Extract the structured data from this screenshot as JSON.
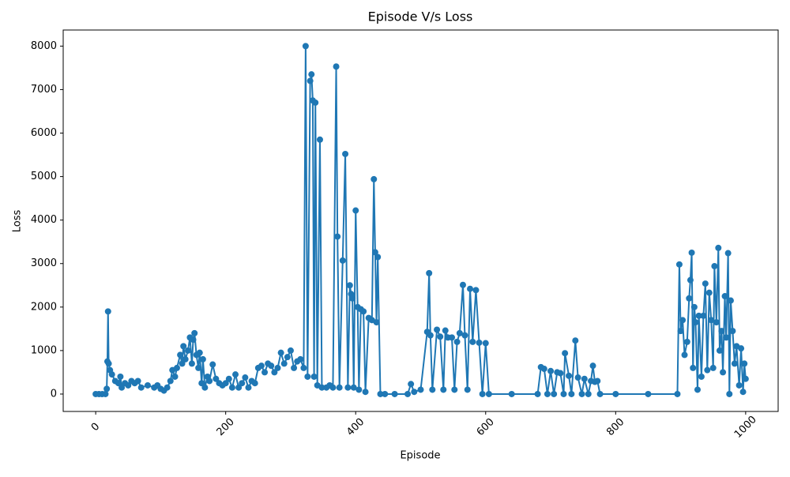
{
  "chart_data": {
    "type": "line",
    "title": "Episode V/s Loss",
    "x_label": "Episode",
    "y_label": "Loss",
    "series": [
      {
        "color": "#1f77b4",
        "x": [
          0,
          5,
          10,
          15,
          17,
          18,
          19,
          20,
          22,
          25,
          30,
          35,
          38,
          40,
          45,
          50,
          55,
          60,
          65,
          70,
          80,
          90,
          95,
          100,
          105,
          110,
          115,
          118,
          122,
          125,
          130,
          133,
          135,
          138,
          142,
          145,
          148,
          150,
          152,
          155,
          158,
          160,
          163,
          165,
          168,
          172,
          175,
          180,
          185,
          190,
          195,
          200,
          205,
          210,
          215,
          220,
          225,
          230,
          235,
          240,
          245,
          250,
          255,
          260,
          265,
          270,
          275,
          280,
          285,
          290,
          295,
          300,
          305,
          310,
          315,
          320,
          323,
          326,
          330,
          332,
          334,
          336,
          338,
          341,
          345,
          348,
          355,
          360,
          365,
          370,
          372,
          375,
          380,
          384,
          388,
          391,
          393,
          395,
          397,
          400,
          403,
          405,
          408,
          412,
          415,
          420,
          425,
          428,
          430,
          432,
          434,
          438,
          445,
          460,
          480,
          485,
          490,
          500,
          510,
          513,
          515,
          518,
          525,
          530,
          535,
          538,
          542,
          548,
          552,
          556,
          560,
          565,
          568,
          572,
          576,
          580,
          585,
          590,
          595,
          600,
          605,
          640,
          680,
          685,
          690,
          695,
          700,
          705,
          710,
          715,
          720,
          722,
          728,
          732,
          738,
          742,
          748,
          752,
          758,
          762,
          765,
          768,
          772,
          776,
          800,
          850,
          895,
          898,
          900,
          903,
          906,
          910,
          913,
          915,
          917,
          919,
          921,
          923,
          926,
          928,
          932,
          935,
          938,
          941,
          944,
          947,
          950,
          952,
          955,
          958,
          960,
          963,
          965,
          968,
          970,
          973,
          975,
          977,
          980,
          983,
          986,
          990,
          993,
          996,
          998,
          1000
        ],
        "values": [
          0,
          0,
          0,
          0,
          120,
          750,
          1900,
          700,
          550,
          450,
          300,
          250,
          400,
          150,
          250,
          200,
          300,
          250,
          300,
          150,
          200,
          150,
          200,
          120,
          80,
          150,
          300,
          550,
          400,
          600,
          900,
          700,
          1100,
          800,
          1000,
          1300,
          700,
          1250,
          1400,
          900,
          600,
          950,
          250,
          800,
          150,
          400,
          300,
          680,
          350,
          250,
          200,
          250,
          350,
          150,
          450,
          150,
          250,
          380,
          150,
          300,
          250,
          600,
          650,
          500,
          700,
          650,
          500,
          600,
          950,
          700,
          850,
          1000,
          600,
          750,
          800,
          600,
          8000,
          400,
          7200,
          7350,
          6750,
          400,
          6700,
          200,
          5850,
          150,
          150,
          200,
          150,
          7530,
          3620,
          150,
          3070,
          5520,
          150,
          2500,
          2300,
          2200,
          150,
          4220,
          2000,
          100,
          1950,
          1900,
          50,
          1750,
          1700,
          4940,
          3260,
          1650,
          3150,
          0,
          0,
          0,
          0,
          230,
          50,
          100,
          1430,
          2780,
          1350,
          100,
          1480,
          1320,
          100,
          1460,
          1300,
          1300,
          100,
          1200,
          1400,
          2510,
          1350,
          100,
          2420,
          1200,
          2390,
          1180,
          0,
          1170,
          0,
          0,
          0,
          620,
          580,
          0,
          530,
          0,
          500,
          480,
          0,
          940,
          420,
          0,
          1230,
          380,
          0,
          350,
          0,
          300,
          650,
          280,
          300,
          0,
          0,
          0,
          0,
          2980,
          1450,
          1700,
          900,
          1200,
          2200,
          2620,
          3250,
          600,
          2000,
          1650,
          100,
          1800,
          400,
          1800,
          2540,
          550,
          2330,
          1700,
          600,
          2940,
          1650,
          3360,
          1000,
          1450,
          500,
          2250,
          1300,
          3240,
          0,
          2150,
          1450,
          700,
          1100,
          200,
          1050,
          50,
          700,
          350
        ]
      }
    ],
    "xlim": [
      -50,
      1050
    ],
    "xticks": [
      0,
      200,
      400,
      600,
      800,
      1000
    ],
    "ylim": [
      -400,
      8370
    ],
    "yticks": [
      0,
      1000,
      2000,
      3000,
      4000,
      5000,
      6000,
      7000,
      8000
    ]
  }
}
